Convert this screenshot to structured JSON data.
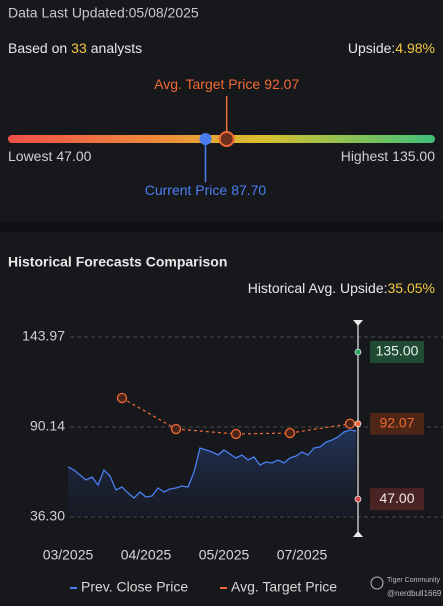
{
  "updated": "Data Last Updated:05/08/2025",
  "analysts": {
    "prefix": "Based on",
    "count": 33,
    "suffix": "analysts"
  },
  "upside": {
    "label": "Upside:",
    "value": "4.98%"
  },
  "target_range": {
    "avg_label": "Avg. Target Price",
    "avg": 92.07,
    "current_label": "Current Price",
    "current": {
      "value": 87.7,
      "label": "87.70"
    },
    "low_label": "Lowest",
    "low": {
      "value": 47,
      "label": "47.00"
    },
    "high_label": "Highest",
    "high": {
      "value": 135,
      "label": "135.00"
    }
  },
  "chart_data": {
    "type": "line",
    "title": "Historical Forecasts Comparison",
    "avg_upside_label": "Historical Avg. Upside:",
    "avg_upside": "35.05%",
    "categories": [
      "03/2025",
      null,
      null,
      null,
      null,
      null,
      null,
      null,
      null,
      null,
      null,
      null,
      null,
      "04/2025",
      null,
      null,
      null,
      null,
      null,
      null,
      null,
      null,
      null,
      null,
      null,
      null,
      "05/2025",
      null,
      null,
      null,
      null,
      null,
      null,
      null,
      null,
      null,
      null,
      null,
      null,
      "07/2025",
      null,
      null,
      null,
      null,
      null,
      null,
      null,
      null,
      null
    ],
    "series": [
      {
        "name": "Prev. Close Price",
        "color": "#4a7ef0",
        "values": [
          66.21,
          64.41,
          61.42,
          58.43,
          60.23,
          55.44,
          64.41,
          60.82,
          52.45,
          54.24,
          50.66,
          47.66,
          51.25,
          48.26,
          48.86,
          53.65,
          51.25,
          53.05,
          53.65,
          54.84,
          54.24,
          63.22,
          77.57,
          76.38,
          75.18,
          73.39,
          76.38,
          73.98,
          71.59,
          73.39,
          70.39,
          72.19,
          67.4,
          69.2,
          68.6,
          70.39,
          68.6,
          71.59,
          72.79,
          75.18,
          73.39,
          77.57,
          78.17,
          81.16,
          82.36,
          84.15,
          87.14,
          88.34,
          87.7
        ]
      },
      {
        "name": "Avg. Target Price",
        "color": "#f06a35",
        "values": [
          null,
          null,
          null,
          null,
          null,
          null,
          null,
          null,
          null,
          107.48,
          null,
          null,
          null,
          null,
          null,
          null,
          null,
          null,
          88.94,
          null,
          null,
          null,
          null,
          null,
          null,
          null,
          null,
          null,
          85.95,
          null,
          null,
          null,
          null,
          null,
          null,
          null,
          null,
          86.54,
          null,
          null,
          null,
          null,
          null,
          null,
          null,
          null,
          null,
          92.07,
          null
        ]
      }
    ],
    "ylim": [
      36.3,
      143.97
    ],
    "yticks": [
      143.97,
      90.14,
      {
        "value": 36.3,
        "label": "36.30"
      }
    ],
    "grid": true,
    "end_labels": [
      {
        "value": 135,
        "label": "135.00",
        "color": "#1f4b34",
        "text_color": "#e6f2ea",
        "dot": "#2aa860"
      },
      {
        "value": 92.07,
        "label": "92.07",
        "color": "#4e2617",
        "text_color": "#f06a35",
        "dot": "#f06a35"
      },
      {
        "value": 47,
        "label": "47.00",
        "color": "#4a2424",
        "text_color": "#f0e6e6",
        "dot": "#d04848"
      }
    ]
  },
  "watermark": {
    "brand": "Tiger Community",
    "user": "@nerdbull1669"
  }
}
